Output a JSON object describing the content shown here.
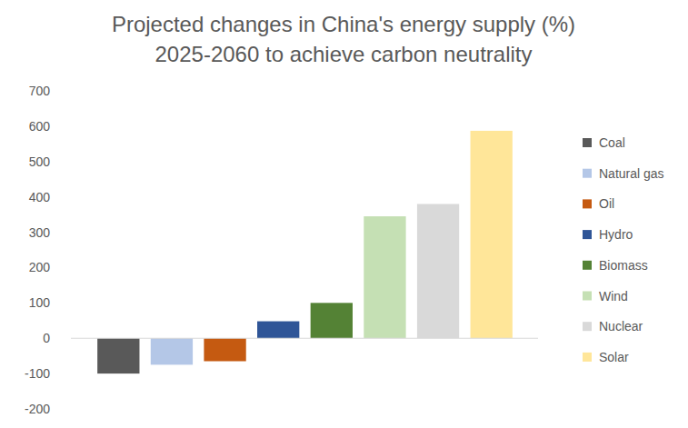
{
  "chart_data": {
    "type": "bar",
    "title": [
      "Projected changes in China's energy supply (%)",
      "2025-2060 to achieve carbon neutrality"
    ],
    "categories": [
      "Coal",
      "Natural gas",
      "Oil",
      "Hydro",
      "Biomass",
      "Wind",
      "Nuclear",
      "Solar"
    ],
    "values": [
      -100,
      -75,
      -65,
      48,
      100,
      345,
      380,
      587
    ],
    "colors": [
      "#595959",
      "#b4c7e7",
      "#c55a11",
      "#2f5597",
      "#548235",
      "#c5e0b4",
      "#d9d9d9",
      "#ffe699"
    ],
    "ylim": [
      -200,
      700
    ],
    "yticks": [
      -200,
      -100,
      0,
      100,
      200,
      300,
      400,
      500,
      600,
      700
    ],
    "grid": false,
    "legend": "right",
    "tick_labels": "y"
  }
}
